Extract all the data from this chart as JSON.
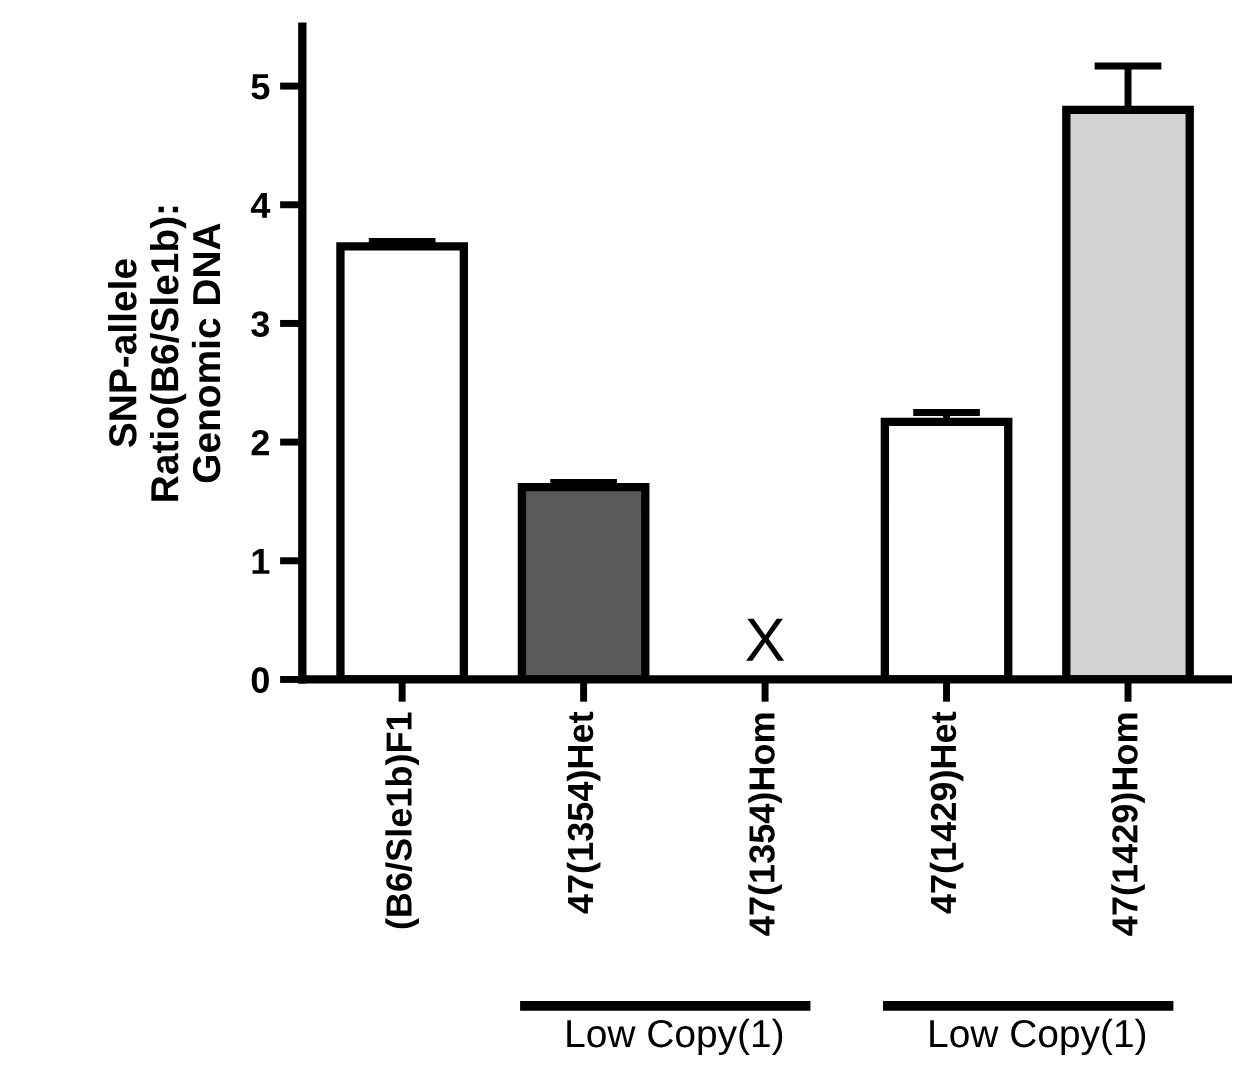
{
  "chart_data": {
    "type": "bar",
    "ylabel": "SNP-allele\nRatio(B6/Sle1b):\nGenomic DNA",
    "categories": [
      "(B6/Sle1b)F1",
      "47(1354)Het",
      "47(1354)Hom",
      "47(1429)Het",
      "47(1429)Hom"
    ],
    "values": [
      3.65,
      1.62,
      null,
      2.17,
      4.8
    ],
    "errors": [
      0.04,
      0.04,
      null,
      0.08,
      0.37
    ],
    "colors": [
      "#ffffff",
      "#5a5a5a",
      "#ffffff",
      "#ffffff",
      "#d3d3d3"
    ],
    "ylim": [
      0,
      5.5
    ],
    "yticks": [
      0,
      1,
      2,
      3,
      4,
      5
    ],
    "grid": false,
    "annotations": [
      "X",
      "Low Copy(1)",
      "Low Copy(1)"
    ]
  }
}
